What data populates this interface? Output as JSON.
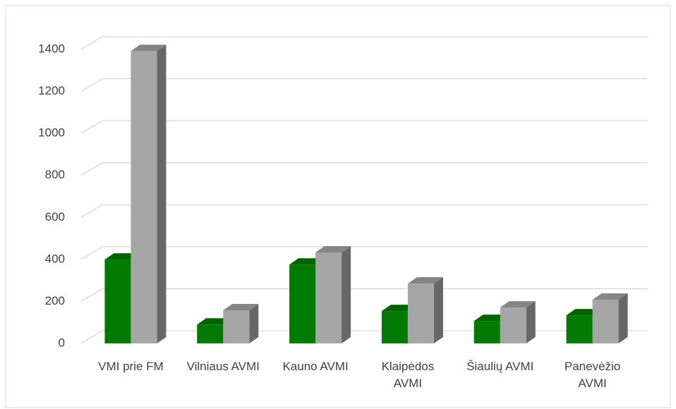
{
  "chart_data": {
    "type": "bar3d",
    "categories": [
      "VMI prie FM",
      "Vilniaus AVMI",
      "Kauno AVMI",
      "Klaipėdos AVMI",
      "Šiaulių AVMI",
      "Panevėžio AVMI"
    ],
    "series": [
      {
        "color": "#007a00",
        "values": [
          399,
          90,
          375,
          154,
          107,
          134
        ]
      },
      {
        "color": "#a6a6a6",
        "values": [
          1392,
          158,
          433,
          285,
          171,
          208
        ]
      }
    ],
    "ylim": [
      0,
      1400
    ],
    "yticks": [
      0,
      200,
      400,
      600,
      800,
      1000,
      1200,
      1400
    ],
    "grid": true
  }
}
